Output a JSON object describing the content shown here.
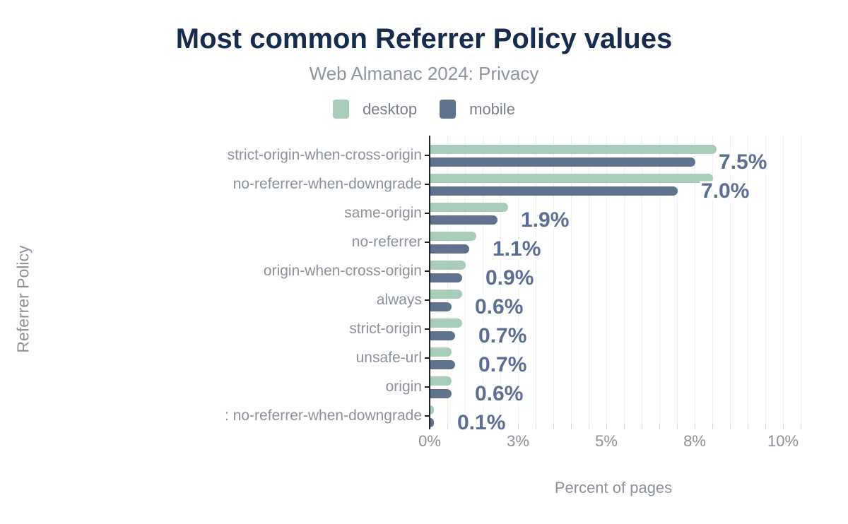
{
  "header": {
    "title": "Most common Referrer Policy values",
    "subtitle": "Web Almanac 2024: Privacy"
  },
  "legend": [
    {
      "label": "desktop",
      "color": "#a8ccba"
    },
    {
      "label": "mobile",
      "color": "#61728f"
    }
  ],
  "colors": {
    "title": "#172b4d",
    "muted_text": "#8b919b",
    "desktop_bar": "#a8ccba",
    "mobile_bar": "#61728f",
    "value_label": "#5c6e92",
    "axis": "#1f1f1f",
    "gridline": "#f1f1f4"
  },
  "chart_data": {
    "type": "bar",
    "orientation": "horizontal",
    "title": "Most common Referrer Policy values",
    "subtitle": "Web Almanac 2024: Privacy",
    "xlabel": "Percent of pages",
    "ylabel": "Referrer Policy",
    "xlim": [
      0,
      10.5
    ],
    "grid": "vertical",
    "legend_position": "top",
    "categories": [
      "strict-origin-when-cross-origin",
      "no-referrer-when-downgrade",
      "same-origin",
      "no-referrer",
      "origin-when-cross-origin",
      "always",
      "strict-origin",
      "unsafe-url",
      "origin",
      ": no-referrer-when-downgrade"
    ],
    "series": [
      {
        "name": "desktop",
        "color": "#a8ccba",
        "values": [
          8.1,
          8.0,
          2.2,
          1.3,
          1.0,
          0.9,
          0.9,
          0.6,
          0.6,
          0.1
        ]
      },
      {
        "name": "mobile",
        "color": "#61728f",
        "values": [
          7.5,
          7.0,
          1.9,
          1.1,
          0.9,
          0.6,
          0.7,
          0.7,
          0.6,
          0.1
        ]
      }
    ],
    "value_labels": [
      "7.5%",
      "7.0%",
      "1.9%",
      "1.1%",
      "0.9%",
      "0.6%",
      "0.7%",
      "0.7%",
      "0.6%",
      "0.1%"
    ],
    "x_ticks": [
      {
        "value": 0,
        "label": "0%"
      },
      {
        "value": 2.5,
        "label": "3%"
      },
      {
        "value": 5,
        "label": "5%"
      },
      {
        "value": 7.5,
        "label": "8%"
      },
      {
        "value": 10,
        "label": "10%"
      }
    ]
  }
}
